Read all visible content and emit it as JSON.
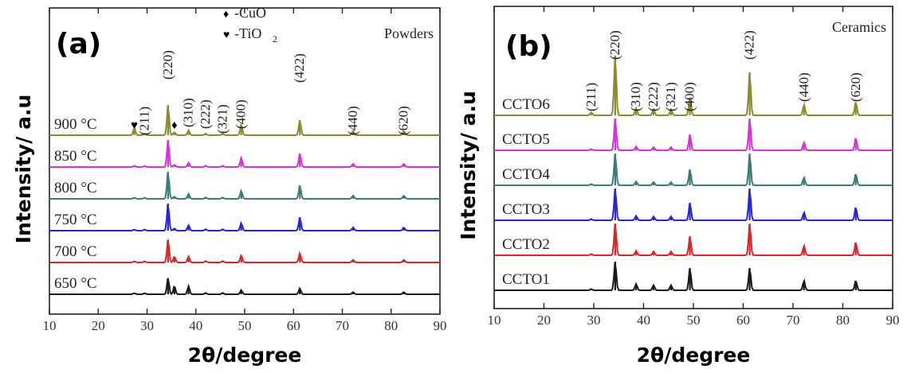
{
  "chart_data": [
    {
      "type": "line",
      "panel_label": "(a)",
      "corner_label": "Powders",
      "xlabel": "2θ/degree",
      "ylabel": "Intensity/ a.u",
      "xlim": [
        10,
        90
      ],
      "xticks": [
        10,
        20,
        30,
        40,
        50,
        60,
        70,
        80,
        90
      ],
      "legend": [
        {
          "symbol": "♦",
          "text": "-CuO"
        },
        {
          "symbol": "♥",
          "text": "-TiO",
          "sub": "2"
        }
      ],
      "peak_labels": [
        {
          "text": "(211)",
          "x": 29.5
        },
        {
          "text": "(220)",
          "x": 34.3
        },
        {
          "text": "(310)",
          "x": 38.5
        },
        {
          "text": "(222)",
          "x": 42.0
        },
        {
          "text": "(321)",
          "x": 45.5
        },
        {
          "text": "(400)",
          "x": 49.3
        },
        {
          "text": "(422)",
          "x": 61.3
        },
        {
          "text": "(440)",
          "x": 72.2
        },
        {
          "text": "(620)",
          "x": 82.6
        }
      ],
      "phase_markers": [
        {
          "symbol": "♥",
          "x": 27.4
        },
        {
          "symbol": "♦",
          "x": 35.6
        }
      ],
      "series": [
        {
          "name": "900 °C",
          "color": "#8a8a2e",
          "peaks": [
            [
              27.4,
              0.25
            ],
            [
              29.5,
              0.05
            ],
            [
              34.3,
              1.0
            ],
            [
              35.6,
              0.1
            ],
            [
              38.5,
              0.16
            ],
            [
              42.0,
              0.05
            ],
            [
              45.5,
              0.05
            ],
            [
              49.3,
              0.34
            ],
            [
              61.3,
              0.5
            ],
            [
              72.2,
              0.14
            ],
            [
              82.6,
              0.14
            ]
          ]
        },
        {
          "name": "850 °C",
          "color": "#d633d6",
          "peaks": [
            [
              27.4,
              0.05
            ],
            [
              29.5,
              0.04
            ],
            [
              34.3,
              1.0
            ],
            [
              35.6,
              0.08
            ],
            [
              38.5,
              0.16
            ],
            [
              42.0,
              0.05
            ],
            [
              45.5,
              0.05
            ],
            [
              49.3,
              0.34
            ],
            [
              61.3,
              0.5
            ],
            [
              72.2,
              0.12
            ],
            [
              82.6,
              0.12
            ]
          ]
        },
        {
          "name": "800 °C",
          "color": "#3d7b75",
          "peaks": [
            [
              27.4,
              0.04
            ],
            [
              29.5,
              0.04
            ],
            [
              34.3,
              1.0
            ],
            [
              35.6,
              0.08
            ],
            [
              38.5,
              0.18
            ],
            [
              42.0,
              0.05
            ],
            [
              45.5,
              0.05
            ],
            [
              49.3,
              0.3
            ],
            [
              61.3,
              0.5
            ],
            [
              72.2,
              0.12
            ],
            [
              82.6,
              0.12
            ]
          ]
        },
        {
          "name": "750 °C",
          "color": "#2626d9",
          "peaks": [
            [
              27.4,
              0.04
            ],
            [
              29.5,
              0.04
            ],
            [
              34.3,
              1.0
            ],
            [
              35.6,
              0.08
            ],
            [
              38.5,
              0.2
            ],
            [
              42.0,
              0.05
            ],
            [
              45.5,
              0.05
            ],
            [
              49.3,
              0.28
            ],
            [
              61.3,
              0.5
            ],
            [
              72.2,
              0.12
            ],
            [
              82.6,
              0.12
            ]
          ]
        },
        {
          "name": "700 °C",
          "color": "#d62828",
          "peaks": [
            [
              27.4,
              0.04
            ],
            [
              29.5,
              0.04
            ],
            [
              34.3,
              0.85
            ],
            [
              35.6,
              0.22
            ],
            [
              38.5,
              0.22
            ],
            [
              42.0,
              0.05
            ],
            [
              45.5,
              0.05
            ],
            [
              49.3,
              0.26
            ],
            [
              61.3,
              0.34
            ],
            [
              72.2,
              0.1
            ],
            [
              82.6,
              0.1
            ]
          ]
        },
        {
          "name": "650 °C",
          "color": "#1a1a1a",
          "peaks": [
            [
              27.4,
              0.04
            ],
            [
              29.5,
              0.04
            ],
            [
              34.3,
              0.6
            ],
            [
              35.6,
              0.3
            ],
            [
              38.5,
              0.3
            ],
            [
              42.0,
              0.05
            ],
            [
              45.5,
              0.05
            ],
            [
              49.3,
              0.16
            ],
            [
              61.3,
              0.22
            ],
            [
              72.2,
              0.08
            ],
            [
              82.6,
              0.08
            ]
          ]
        }
      ]
    },
    {
      "type": "line",
      "panel_label": "(b)",
      "corner_label": "Ceramics",
      "xlabel": "2θ/degree",
      "ylabel": "Intensity/ a.u",
      "xlim": [
        10,
        90
      ],
      "xticks": [
        10,
        20,
        30,
        40,
        50,
        60,
        70,
        80,
        90
      ],
      "peak_labels": [
        {
          "text": "(211)",
          "x": 29.5
        },
        {
          "text": "(220)",
          "x": 34.3
        },
        {
          "text": "(310)",
          "x": 38.5
        },
        {
          "text": "(222)",
          "x": 42.0
        },
        {
          "text": "(321)",
          "x": 45.5
        },
        {
          "text": "(400)",
          "x": 49.3
        },
        {
          "text": "(422)",
          "x": 61.3
        },
        {
          "text": "(440)",
          "x": 72.2
        },
        {
          "text": "(620)",
          "x": 82.6
        }
      ],
      "series": [
        {
          "name": "CCTO6",
          "color": "#8a8a2e",
          "peaks": [
            [
              29.5,
              0.05
            ],
            [
              34.3,
              1.0
            ],
            [
              38.5,
              0.12
            ],
            [
              42.0,
              0.1
            ],
            [
              45.5,
              0.1
            ],
            [
              49.3,
              0.3
            ],
            [
              61.3,
              0.72
            ],
            [
              72.2,
              0.18
            ],
            [
              82.6,
              0.22
            ]
          ]
        },
        {
          "name": "CCTO5",
          "color": "#d633d6",
          "peaks": [
            [
              29.5,
              0.04
            ],
            [
              34.3,
              1.0
            ],
            [
              38.5,
              0.12
            ],
            [
              42.0,
              0.1
            ],
            [
              45.5,
              0.1
            ],
            [
              49.3,
              0.5
            ],
            [
              61.3,
              1.0
            ],
            [
              72.2,
              0.25
            ],
            [
              82.6,
              0.38
            ]
          ]
        },
        {
          "name": "CCTO4",
          "color": "#3d7b75",
          "peaks": [
            [
              29.5,
              0.04
            ],
            [
              34.3,
              1.0
            ],
            [
              38.5,
              0.12
            ],
            [
              42.0,
              0.1
            ],
            [
              45.5,
              0.1
            ],
            [
              49.3,
              0.5
            ],
            [
              61.3,
              1.0
            ],
            [
              72.2,
              0.25
            ],
            [
              82.6,
              0.35
            ]
          ]
        },
        {
          "name": "CCTO3",
          "color": "#2626d9",
          "peaks": [
            [
              29.5,
              0.04
            ],
            [
              34.3,
              1.0
            ],
            [
              38.5,
              0.14
            ],
            [
              42.0,
              0.12
            ],
            [
              45.5,
              0.12
            ],
            [
              49.3,
              0.55
            ],
            [
              61.3,
              1.0
            ],
            [
              72.2,
              0.25
            ],
            [
              82.6,
              0.4
            ]
          ]
        },
        {
          "name": "CCTO2",
          "color": "#d62828",
          "peaks": [
            [
              29.5,
              0.04
            ],
            [
              34.3,
              1.0
            ],
            [
              38.5,
              0.14
            ],
            [
              42.0,
              0.12
            ],
            [
              45.5,
              0.12
            ],
            [
              49.3,
              0.6
            ],
            [
              61.3,
              1.0
            ],
            [
              72.2,
              0.3
            ],
            [
              82.6,
              0.4
            ]
          ]
        },
        {
          "name": "CCTO1",
          "color": "#1a1a1a",
          "peaks": [
            [
              29.5,
              0.04
            ],
            [
              34.3,
              0.9
            ],
            [
              38.5,
              0.2
            ],
            [
              42.0,
              0.16
            ],
            [
              45.5,
              0.16
            ],
            [
              49.3,
              0.7
            ],
            [
              61.3,
              0.7
            ],
            [
              72.2,
              0.3
            ],
            [
              82.6,
              0.3
            ]
          ]
        }
      ]
    }
  ]
}
